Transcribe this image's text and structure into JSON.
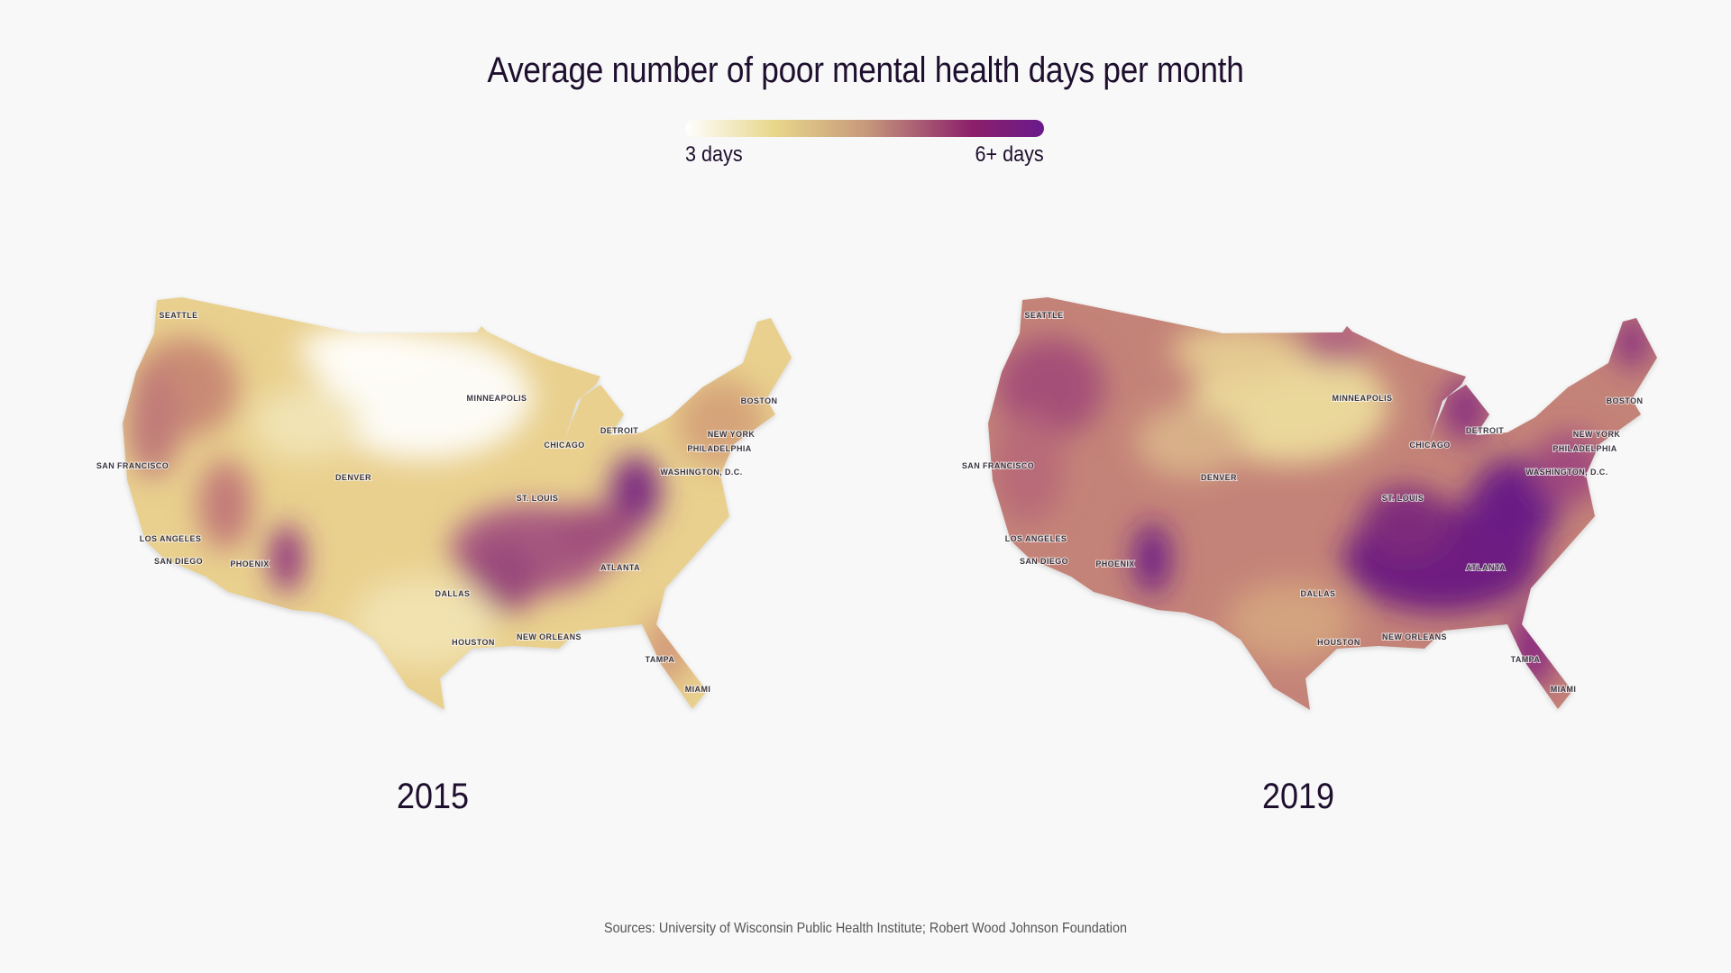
{
  "title": "Average number of poor mental health days per month",
  "legend": {
    "min_label": "3 days",
    "max_label": "6+ days",
    "colors": [
      "#ffffff",
      "#e8d68a",
      "#c79a7c",
      "#8c1f6a",
      "#6a1a8c"
    ]
  },
  "maps": [
    {
      "year": "2015"
    },
    {
      "year": "2019"
    }
  ],
  "cities": [
    "SEATTLE",
    "SAN FRANCISCO",
    "LOS ANGELES",
    "SAN DIEGO",
    "PHOENIX",
    "DENVER",
    "DALLAS",
    "HOUSTON",
    "MINNEAPOLIS",
    "CHICAGO",
    "DETROIT",
    "ST. LOUIS",
    "NEW ORLEANS",
    "ATLANTA",
    "TAMPA",
    "MIAMI",
    "WASHINGTON, D.C.",
    "PHILADELPHIA",
    "NEW YORK",
    "BOSTON"
  ],
  "source": "Sources: University of Wisconsin Public Health Institute; Robert Wood Johnson Foundation"
}
